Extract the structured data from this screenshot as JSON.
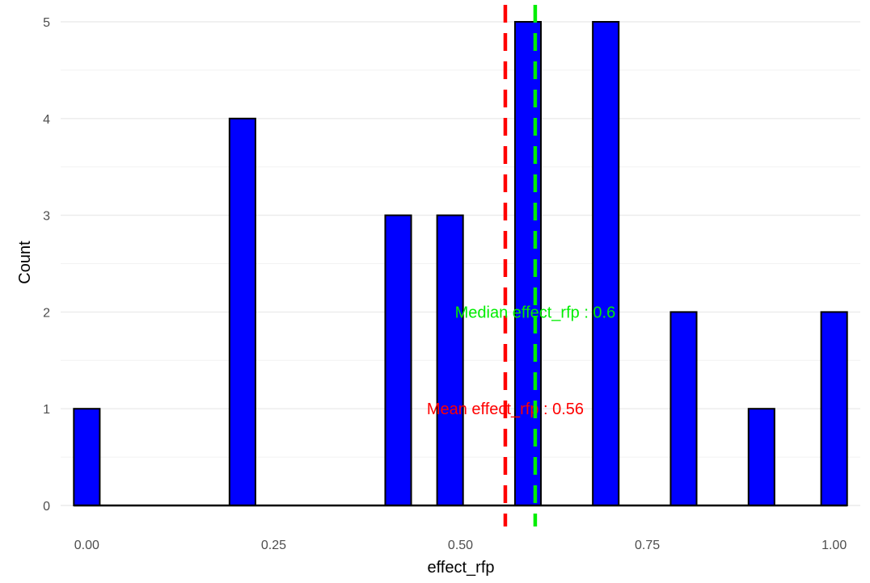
{
  "chart_data": {
    "type": "bar",
    "title": "",
    "xlabel": "effect_rfp",
    "ylabel": "Count",
    "xlim": [
      -0.035,
      1.035
    ],
    "ylim": [
      0,
      5
    ],
    "bins": [
      {
        "x": 0.0,
        "count": 1
      },
      {
        "x": 0.2083,
        "count": 4
      },
      {
        "x": 0.4167,
        "count": 3
      },
      {
        "x": 0.4861,
        "count": 3
      },
      {
        "x": 0.5903,
        "count": 5
      },
      {
        "x": 0.6944,
        "count": 5
      },
      {
        "x": 0.7986,
        "count": 2
      },
      {
        "x": 0.9028,
        "count": 1
      },
      {
        "x": 1.0,
        "count": 2
      }
    ],
    "bar_width": 0.0347,
    "x_ticks": [
      0.0,
      0.25,
      0.5,
      0.75,
      1.0
    ],
    "x_tick_labels": [
      "0.00",
      "0.25",
      "0.50",
      "0.75",
      "1.00"
    ],
    "y_ticks": [
      0,
      1,
      2,
      3,
      4,
      5
    ],
    "y_tick_labels": [
      "0",
      "1",
      "2",
      "3",
      "4",
      "5"
    ],
    "bar_color": "#0000ff",
    "bar_outline": "#000000",
    "grid": true,
    "reference_lines": [
      {
        "name": "mean",
        "value": 0.56,
        "color": "#ff0000",
        "label": "Mean effect_rfp : 0.56",
        "label_y": 1
      },
      {
        "name": "median",
        "value": 0.6,
        "color": "#00ee00",
        "label": "Median effect_rfp : 0.6",
        "label_y": 2
      }
    ]
  }
}
